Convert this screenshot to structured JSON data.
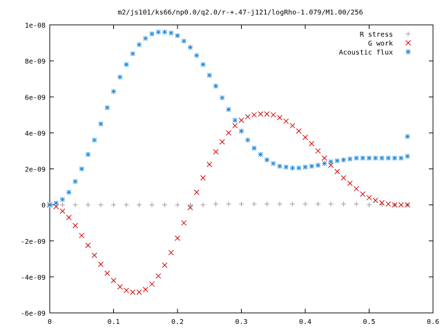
{
  "chart_data": {
    "type": "scatter",
    "title": "m2/js101/ks66/np0.0/q2.0/r-+.47-j121/logRho-1.079/M1.00/256",
    "xlabel": "",
    "ylabel": "",
    "xlim": [
      0,
      0.6
    ],
    "ylim": [
      -6e-09,
      1e-08
    ],
    "grid": false,
    "legend_position": "top-right",
    "x_ticks": [
      {
        "value": 0,
        "label": "0"
      },
      {
        "value": 0.1,
        "label": "0.1"
      },
      {
        "value": 0.2,
        "label": "0.2"
      },
      {
        "value": 0.3,
        "label": "0.3"
      },
      {
        "value": 0.4,
        "label": "0.4"
      },
      {
        "value": 0.5,
        "label": "0.5"
      },
      {
        "value": 0.6,
        "label": "0.6"
      }
    ],
    "y_ticks": [
      {
        "value": -6e-09,
        "label": "-6e-09"
      },
      {
        "value": -4e-09,
        "label": "-4e-09"
      },
      {
        "value": -2e-09,
        "label": "-2e-09"
      },
      {
        "value": 0,
        "label": "0"
      },
      {
        "value": 2e-09,
        "label": "2e-09"
      },
      {
        "value": 4e-09,
        "label": "4e-09"
      },
      {
        "value": 6e-09,
        "label": "6e-09"
      },
      {
        "value": 8e-09,
        "label": "8e-09"
      },
      {
        "value": 1e-08,
        "label": "1e-08"
      }
    ],
    "series": [
      {
        "name": "R stress",
        "marker": "plus",
        "color": "#a0a0a0",
        "x": [
          0,
          0.02,
          0.04,
          0.06,
          0.08,
          0.1,
          0.12,
          0.14,
          0.16,
          0.18,
          0.2,
          0.22,
          0.24,
          0.26,
          0.28,
          0.3,
          0.32,
          0.34,
          0.36,
          0.38,
          0.4,
          0.42,
          0.44,
          0.46,
          0.48,
          0.5,
          0.52,
          0.54,
          0.56
        ],
        "y": [
          0,
          0,
          0,
          0,
          0,
          0,
          0,
          0,
          0,
          0,
          0,
          0,
          0,
          5e-11,
          5e-11,
          5e-11,
          5e-11,
          5e-11,
          5e-11,
          5e-11,
          5e-11,
          5e-11,
          5e-11,
          5e-11,
          5e-11,
          0,
          0,
          0,
          0
        ]
      },
      {
        "name": "G work",
        "marker": "cross",
        "color": "#d40000",
        "x": [
          0,
          0.01,
          0.02,
          0.03,
          0.04,
          0.05,
          0.06,
          0.07,
          0.08,
          0.09,
          0.1,
          0.11,
          0.12,
          0.13,
          0.14,
          0.15,
          0.16,
          0.17,
          0.18,
          0.19,
          0.2,
          0.21,
          0.22,
          0.23,
          0.24,
          0.25,
          0.26,
          0.27,
          0.28,
          0.29,
          0.3,
          0.31,
          0.32,
          0.33,
          0.34,
          0.35,
          0.36,
          0.37,
          0.38,
          0.39,
          0.4,
          0.41,
          0.42,
          0.43,
          0.44,
          0.45,
          0.46,
          0.47,
          0.48,
          0.49,
          0.5,
          0.51,
          0.52,
          0.53,
          0.54,
          0.55,
          0.56
        ],
        "y": [
          0,
          -1e-10,
          -3.5e-10,
          -7e-10,
          -1.15e-09,
          -1.7e-09,
          -2.25e-09,
          -2.8e-09,
          -3.3e-09,
          -3.8e-09,
          -4.2e-09,
          -4.55e-09,
          -4.75e-09,
          -4.85e-09,
          -4.85e-09,
          -4.7e-09,
          -4.4e-09,
          -3.95e-09,
          -3.35e-09,
          -2.65e-09,
          -1.85e-09,
          -1e-09,
          -1.5e-10,
          7e-10,
          1.5e-09,
          2.25e-09,
          2.95e-09,
          3.5e-09,
          4e-09,
          4.4e-09,
          4.7e-09,
          4.9e-09,
          5e-09,
          5.05e-09,
          5.05e-09,
          5e-09,
          4.85e-09,
          4.65e-09,
          4.4e-09,
          4.1e-09,
          3.75e-09,
          3.4e-09,
          3e-09,
          2.6e-09,
          2.2e-09,
          1.85e-09,
          1.5e-09,
          1.2e-09,
          9e-10,
          6e-10,
          4e-10,
          2.5e-10,
          1.2e-10,
          5e-11,
          0,
          0,
          0
        ]
      },
      {
        "name": "Acoustic flux",
        "marker": "star",
        "color": "#1f88d8",
        "x": [
          0,
          0.01,
          0.02,
          0.03,
          0.04,
          0.05,
          0.06,
          0.07,
          0.08,
          0.09,
          0.1,
          0.11,
          0.12,
          0.13,
          0.14,
          0.15,
          0.16,
          0.17,
          0.18,
          0.19,
          0.2,
          0.21,
          0.22,
          0.23,
          0.24,
          0.25,
          0.26,
          0.27,
          0.28,
          0.29,
          0.3,
          0.31,
          0.32,
          0.33,
          0.34,
          0.35,
          0.36,
          0.37,
          0.38,
          0.39,
          0.4,
          0.41,
          0.42,
          0.43,
          0.44,
          0.45,
          0.46,
          0.47,
          0.48,
          0.49,
          0.5,
          0.51,
          0.52,
          0.53,
          0.54,
          0.55,
          0.56,
          0.56
        ],
        "y": [
          0,
          1e-10,
          3e-10,
          7e-10,
          1.3e-09,
          2e-09,
          2.8e-09,
          3.6e-09,
          4.5e-09,
          5.4e-09,
          6.3e-09,
          7.1e-09,
          7.8e-09,
          8.4e-09,
          8.9e-09,
          9.25e-09,
          9.5e-09,
          9.6e-09,
          9.6e-09,
          9.55e-09,
          9.4e-09,
          9.1e-09,
          8.75e-09,
          8.3e-09,
          7.8e-09,
          7.2e-09,
          6.6e-09,
          5.95e-09,
          5.3e-09,
          4.7e-09,
          4.1e-09,
          3.6e-09,
          3.15e-09,
          2.8e-09,
          2.5e-09,
          2.3e-09,
          2.15e-09,
          2.1e-09,
          2.05e-09,
          2.05e-09,
          2.1e-09,
          2.15e-09,
          2.2e-09,
          2.3e-09,
          2.4e-09,
          2.45e-09,
          2.5e-09,
          2.55e-09,
          2.6e-09,
          2.6e-09,
          2.6e-09,
          2.6e-09,
          2.6e-09,
          2.6e-09,
          2.6e-09,
          2.6e-09,
          2.7e-09,
          3.8e-09
        ]
      }
    ]
  }
}
